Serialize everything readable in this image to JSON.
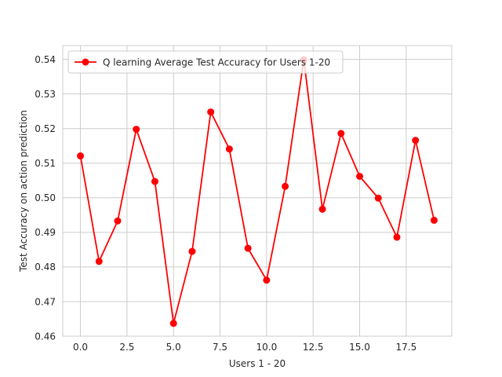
{
  "chart_data": {
    "type": "line",
    "title": "",
    "xlabel": "Users 1 - 20",
    "ylabel": "Test Accuracy on action prediction",
    "xlim": [
      -0.95,
      19.95
    ],
    "ylim": [
      0.46,
      0.544
    ],
    "x_ticks": [
      0,
      2.5,
      5,
      7.5,
      10,
      12.5,
      15,
      17.5
    ],
    "x_tick_labels": [
      "0.0",
      "2.5",
      "5.0",
      "7.5",
      "10.0",
      "12.5",
      "15.0",
      "17.5"
    ],
    "y_ticks": [
      0.46,
      0.47,
      0.48,
      0.49,
      0.5,
      0.51,
      0.52,
      0.53,
      0.54
    ],
    "y_tick_labels": [
      "0.46",
      "0.47",
      "0.48",
      "0.49",
      "0.50",
      "0.51",
      "0.52",
      "0.53",
      "0.54"
    ],
    "grid": true,
    "legend_position": "top-left",
    "series": [
      {
        "name": "Q learning Average Test Accuracy for Users 1-20",
        "color": "#ff0000",
        "marker": "circle",
        "x": [
          0,
          1,
          2,
          3,
          4,
          5,
          6,
          7,
          8,
          9,
          10,
          11,
          12,
          13,
          14,
          15,
          16,
          17,
          18,
          19
        ],
        "values": [
          0.5121,
          0.4816,
          0.4933,
          0.5198,
          0.5047,
          0.4637,
          0.4845,
          0.5248,
          0.5141,
          0.4854,
          0.4762,
          0.5033,
          0.5399,
          0.4967,
          0.5186,
          0.5062,
          0.4999,
          0.4886,
          0.5166,
          0.4935
        ]
      }
    ]
  }
}
